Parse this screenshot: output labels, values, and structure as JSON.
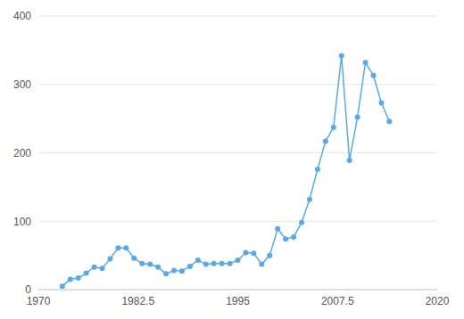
{
  "chart_data": {
    "type": "line",
    "x": [
      1973,
      1974,
      1975,
      1976,
      1977,
      1978,
      1979,
      1980,
      1981,
      1982,
      1983,
      1984,
      1985,
      1986,
      1987,
      1988,
      1989,
      1990,
      1991,
      1992,
      1993,
      1994,
      1995,
      1996,
      1997,
      1998,
      1999,
      2000,
      2001,
      2002,
      2003,
      2004,
      2005,
      2006,
      2007,
      2008,
      2009,
      2010,
      2011,
      2012,
      2013,
      2014
    ],
    "values": [
      5,
      15,
      17,
      24,
      33,
      31,
      45,
      61,
      61,
      46,
      38,
      37,
      33,
      23,
      28,
      27,
      34,
      43,
      37,
      38,
      38,
      38,
      43,
      54,
      53,
      37,
      50,
      89,
      74,
      77,
      98,
      132,
      176,
      217,
      237,
      342,
      189,
      252,
      332,
      313,
      273,
      246
    ],
    "color": "#5aa9e6",
    "marker": "circle",
    "xlim": [
      1970,
      2020
    ],
    "xticks": [
      1970,
      1982.5,
      1995,
      2007.5,
      2020
    ],
    "ylim": [
      0,
      400
    ],
    "yticks": [
      0,
      100,
      200,
      300,
      400
    ],
    "grid": true
  }
}
